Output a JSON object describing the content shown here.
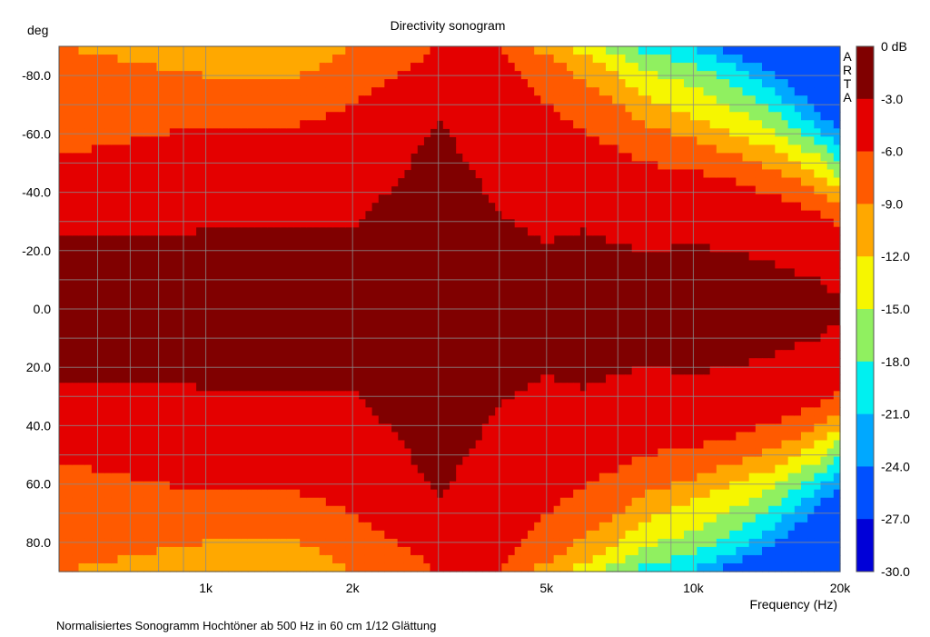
{
  "chart_data": {
    "type": "heatmap",
    "title": "Directivity sonogram",
    "ylabel": "deg",
    "xlabel": "Frequency (Hz)",
    "caption": "Normalisiertes Sonogramm Hochtöner ab 500 Hz in 60 cm 1/12 Glättung",
    "brand": "ARTA",
    "x_scale": "log",
    "xlim": [
      500,
      20000
    ],
    "ylim": [
      -90,
      90
    ],
    "x_ticks": [
      {
        "value": 1000,
        "label": "1k"
      },
      {
        "value": 2000,
        "label": "2k"
      },
      {
        "value": 5000,
        "label": "5k"
      },
      {
        "value": 10000,
        "label": "10k"
      },
      {
        "value": 20000,
        "label": "20k"
      }
    ],
    "x_minor_ticks": [
      600,
      700,
      800,
      900,
      3000,
      4000,
      6000,
      7000,
      8000,
      9000
    ],
    "y_ticks": [
      {
        "value": -80,
        "label": "-80.0"
      },
      {
        "value": -60,
        "label": "-60.0"
      },
      {
        "value": -40,
        "label": "-40.0"
      },
      {
        "value": -20,
        "label": "-20.0"
      },
      {
        "value": 0,
        "label": "0.0"
      },
      {
        "value": 20,
        "label": "20.0"
      },
      {
        "value": 40,
        "label": "40.0"
      },
      {
        "value": 60,
        "label": "60.0"
      },
      {
        "value": 80,
        "label": "80.0"
      }
    ],
    "y_minor_ticks": [
      -90,
      -70,
      -50,
      -30,
      -10,
      10,
      30,
      50,
      70,
      90
    ],
    "colorbar": {
      "labels": [
        "0 dB",
        "-3.0",
        "-6.0",
        "-9.0",
        "-12.0",
        "-15.0",
        "-18.0",
        "-21.0",
        "-24.0",
        "-27.0",
        "-30.0"
      ],
      "colors": [
        "#800000",
        "#e40000",
        "#ff5a00",
        "#ffa800",
        "#f6f600",
        "#90f060",
        "#00f0f0",
        "#00a8ff",
        "#0050ff",
        "#0000d8"
      ]
    },
    "contours_db_vs_freq": {
      "description": "Half-width (deg, symmetric about 0) of each level boundary vs frequency",
      "frequencies_hz": [
        500,
        800,
        1000,
        1500,
        2000,
        2500,
        3000,
        4000,
        5000,
        6000,
        7000,
        8000,
        10000,
        12000,
        15000,
        18000,
        20000
      ],
      "level_boundaries": [
        {
          "db": -3,
          "half_width_deg": [
            25,
            26,
            27,
            28,
            28,
            45,
            66,
            33,
            23,
            27,
            22,
            20,
            22,
            20,
            15,
            10,
            4
          ]
        },
        {
          "db": -6,
          "half_width_deg": [
            52,
            60,
            62,
            62,
            70,
            80,
            90,
            90,
            70,
            60,
            55,
            50,
            47,
            44,
            38,
            33,
            27
          ]
        },
        {
          "db": -9,
          "half_width_deg": [
            90,
            83,
            80,
            78,
            90,
            90,
            90,
            90,
            88,
            77,
            70,
            63,
            58,
            53,
            47,
            40,
            35
          ]
        },
        {
          "db": -12,
          "half_width_deg": [
            90,
            90,
            90,
            90,
            90,
            90,
            90,
            90,
            90,
            88,
            80,
            72,
            66,
            60,
            54,
            46,
            40
          ]
        },
        {
          "db": -15,
          "half_width_deg": [
            90,
            90,
            90,
            90,
            90,
            90,
            90,
            90,
            90,
            90,
            88,
            82,
            76,
            69,
            60,
            52,
            45
          ]
        },
        {
          "db": -18,
          "half_width_deg": [
            90,
            90,
            90,
            90,
            90,
            90,
            90,
            90,
            90,
            90,
            90,
            88,
            84,
            77,
            66,
            57,
            50
          ]
        },
        {
          "db": -21,
          "half_width_deg": [
            90,
            90,
            90,
            90,
            90,
            90,
            90,
            90,
            90,
            90,
            90,
            90,
            89,
            84,
            73,
            62,
            55
          ]
        },
        {
          "db": -24,
          "half_width_deg": [
            90,
            90,
            90,
            90,
            90,
            90,
            90,
            90,
            90,
            90,
            90,
            90,
            90,
            88,
            80,
            68,
            60
          ]
        }
      ]
    }
  }
}
